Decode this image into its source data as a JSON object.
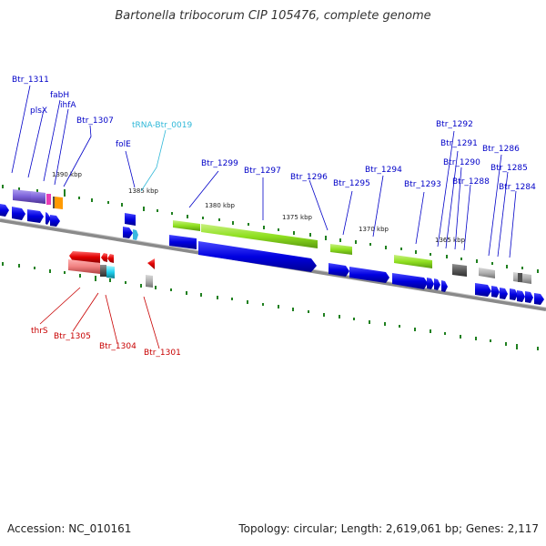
{
  "title": "Bartonella tribocorum CIP 105476, complete genome",
  "footer": {
    "accession": "Accession: NC_010161",
    "summary": "Topology: circular; Length: 2,619,061 bp; Genes: 2,117"
  },
  "tick_labels": [
    "1390 kbp",
    "1385 kbp",
    "1380 kbp",
    "1375 kbp",
    "1370 kbp",
    "1365 kbp"
  ],
  "gene_labels_forward": [
    "Btr_1311",
    "plsX",
    "fabH",
    "ihfA",
    "Btr_1307",
    "folE",
    "Btr_1299",
    "Btr_1297",
    "Btr_1296",
    "Btr_1295",
    "Btr_1294",
    "Btr_1293",
    "Btr_1292",
    "Btr_1291",
    "Btr_1290",
    "Btr_1288",
    "Btr_1286",
    "Btr_1285",
    "Btr_1284"
  ],
  "trna_label": "tRNA-Btr_0019",
  "gene_labels_reverse": [
    "thrS",
    "Btr_1305",
    "Btr_1304",
    "Btr_1301"
  ],
  "colors": {
    "forward_label": "#0000c8",
    "trna_label": "#30b8d8",
    "reverse_label": "#c80000",
    "cds": "#0000e6",
    "rna": "#90e020",
    "reverse_cds": "#e00000",
    "backbone": "#888888",
    "tick": "#208020"
  }
}
